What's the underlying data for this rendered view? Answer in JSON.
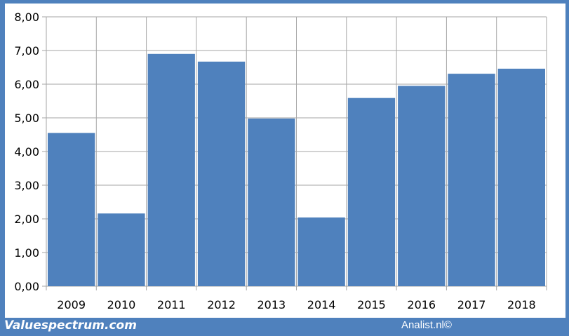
{
  "chart_data": {
    "type": "bar",
    "categories": [
      "2009",
      "2010",
      "2011",
      "2012",
      "2013",
      "2014",
      "2015",
      "2016",
      "2017",
      "2018"
    ],
    "values": [
      4.55,
      2.16,
      6.9,
      6.67,
      4.98,
      2.04,
      5.59,
      5.95,
      6.31,
      6.46
    ],
    "title": "",
    "xlabel": "",
    "ylabel": "",
    "ylim": [
      0,
      8
    ],
    "yticks": [
      "0,00",
      "1,00",
      "2,00",
      "3,00",
      "4,00",
      "5,00",
      "6,00",
      "7,00",
      "8,00"
    ],
    "grid": true,
    "bar_color": "#4f81bd"
  },
  "footer": {
    "left": "Valuespectrum.com",
    "right": "Analist.nl©"
  },
  "colors": {
    "frame": "#4f81bd",
    "grid": "#a6a6a6"
  }
}
